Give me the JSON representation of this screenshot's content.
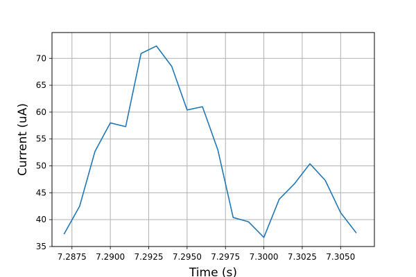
{
  "chart_data": {
    "type": "line",
    "xlabel": "Time (s)",
    "ylabel": "Current (uA)",
    "xlim": [
      7.2862,
      7.3072
    ],
    "ylim": [
      35,
      74.8
    ],
    "xticks": [
      7.2875,
      7.29,
      7.2925,
      7.295,
      7.2975,
      7.3,
      7.3025,
      7.305
    ],
    "xtick_labels": [
      "7.2875",
      "7.2900",
      "7.2925",
      "7.2950",
      "7.2975",
      "7.3000",
      "7.3025",
      "7.3050"
    ],
    "yticks": [
      35,
      40,
      45,
      50,
      55,
      60,
      65,
      70
    ],
    "ytick_labels": [
      "35",
      "40",
      "45",
      "50",
      "55",
      "60",
      "65",
      "70"
    ],
    "grid": true,
    "series": [
      {
        "color": "#1f77b4",
        "x": [
          7.287,
          7.288,
          7.289,
          7.29,
          7.291,
          7.292,
          7.293,
          7.294,
          7.295,
          7.296,
          7.297,
          7.298,
          7.299,
          7.3,
          7.301,
          7.302,
          7.303,
          7.304,
          7.305,
          7.306
        ],
        "y": [
          37.4,
          42.5,
          52.7,
          58.0,
          57.3,
          70.9,
          72.3,
          68.5,
          60.4,
          61.0,
          53.0,
          40.4,
          39.6,
          36.7,
          43.8,
          46.7,
          50.4,
          47.3,
          41.3,
          37.6
        ]
      }
    ]
  }
}
